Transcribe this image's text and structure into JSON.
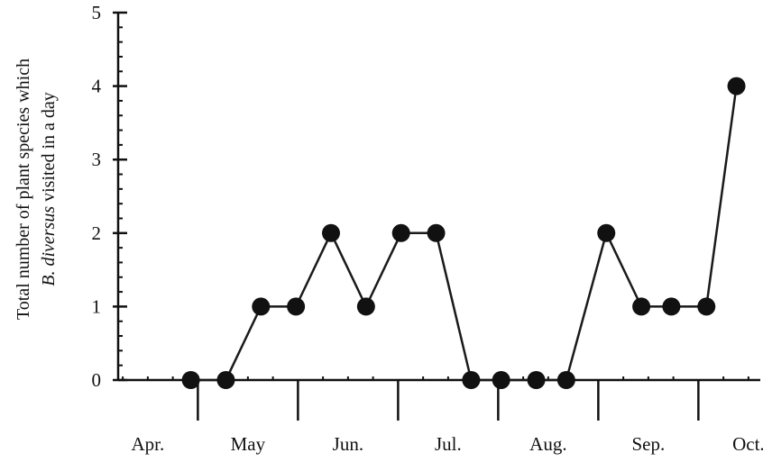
{
  "chart_data": {
    "type": "line",
    "ylabel_line1": "Total number of plant species which",
    "ylabel_line2_italic": "B. diversus",
    "ylabel_line2_rest": " visited in a day",
    "ylim": [
      0,
      5
    ],
    "yticks": [
      "0",
      "1",
      "2",
      "3",
      "4",
      "5"
    ],
    "months": [
      "Apr.",
      "May",
      "Jun.",
      "Jul.",
      "Aug.",
      "Sep.",
      "Oct."
    ],
    "x_domain": [
      0,
      7
    ],
    "series": [
      {
        "x": [
          0.6,
          0.95,
          1.3,
          1.65,
          2.0,
          2.35,
          2.7,
          3.05,
          3.4,
          3.7,
          4.05,
          4.35,
          4.75,
          5.1,
          5.4,
          5.75,
          6.05
        ],
        "values": [
          0,
          0,
          1,
          1,
          2,
          1,
          2,
          2,
          0,
          0,
          0,
          0,
          2,
          1,
          1,
          1,
          4
        ]
      }
    ],
    "colors": {
      "line": "#1a1a1a",
      "marker": "#111111"
    }
  }
}
